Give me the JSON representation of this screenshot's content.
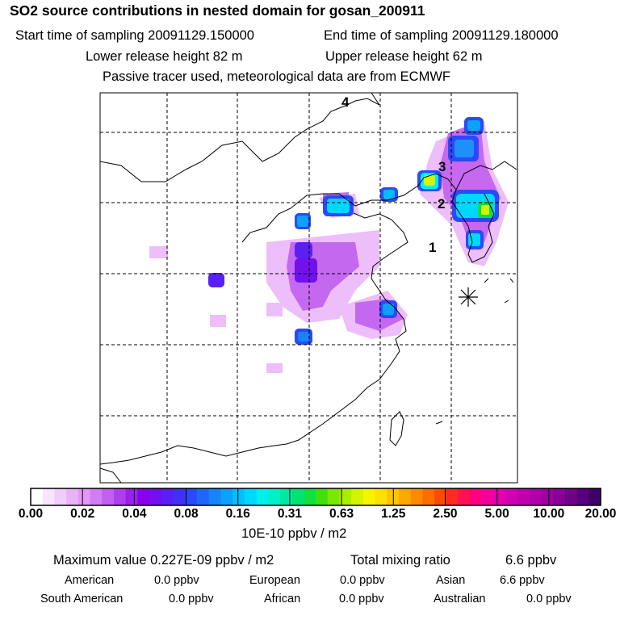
{
  "header": {
    "title": "SO2 source contributions in nested domain for gosan_200911",
    "start_label": "Start time of sampling 20091129.150000",
    "end_label": "End time of sampling 20091129.180000",
    "lower_label": "Lower release height   82 m",
    "upper_label": "Upper release height   62 m",
    "tracer_label": "Passive tracer used, meteorological data are from ECMWF"
  },
  "map": {
    "markers": [
      {
        "id": "marker-4",
        "label": "4"
      },
      {
        "id": "marker-3",
        "label": "3"
      },
      {
        "id": "marker-2",
        "label": "2"
      },
      {
        "id": "marker-1",
        "label": "1"
      }
    ],
    "station_symbol": "gosan-station-marker"
  },
  "colorbar": {
    "ticks": [
      "0.00",
      "0.02",
      "0.04",
      "0.08",
      "0.16",
      "0.31",
      "0.63",
      "1.25",
      "2.50",
      "5.00",
      "10.00",
      "20.00"
    ],
    "colors": [
      "#ffffff",
      "#f9e6fd",
      "#f2cdfb",
      "#eab3f9",
      "#e398f6",
      "#d27ef3",
      "#c05ff0",
      "#ae3fee",
      "#9d1fec",
      "#8a00eb",
      "#7210ee",
      "#5a1ff2",
      "#4231f5",
      "#2c49f8",
      "#1f66fa",
      "#1684fb",
      "#0ca1fc",
      "#06bdfd",
      "#00d7fe",
      "#00efec",
      "#00f0c8",
      "#00e8a0",
      "#00e272",
      "#10e040",
      "#40e010",
      "#7ae800",
      "#a8ee00",
      "#d4f400",
      "#f7f400",
      "#ffe000",
      "#ffc400",
      "#ffa800",
      "#ff8a00",
      "#ff6c00",
      "#ff4a00",
      "#ff2a20",
      "#ff1050",
      "#ff0080",
      "#f0009c",
      "#e000b0",
      "#d000b4",
      "#c000b0",
      "#b000aa",
      "#9c00a0",
      "#880096",
      "#70008a",
      "#58007c",
      "#3e0066"
    ],
    "units": "10E-10 ppbv / m2"
  },
  "summary": {
    "max_label": "Maximum value  0.227E-09 ppbv / m2",
    "total_label": "Total mixing ratio",
    "total_value": "6.6 ppbv",
    "regions": [
      {
        "name": "American",
        "value": "0.0 ppbv"
      },
      {
        "name": "European",
        "value": "0.0 ppbv"
      },
      {
        "name": "Asian",
        "value": "6.6 ppbv"
      },
      {
        "name": "South American",
        "value": "0.0 ppbv"
      },
      {
        "name": "African",
        "value": "0.0 ppbv"
      },
      {
        "name": "Australian",
        "value": "0.0 ppbv"
      }
    ]
  }
}
